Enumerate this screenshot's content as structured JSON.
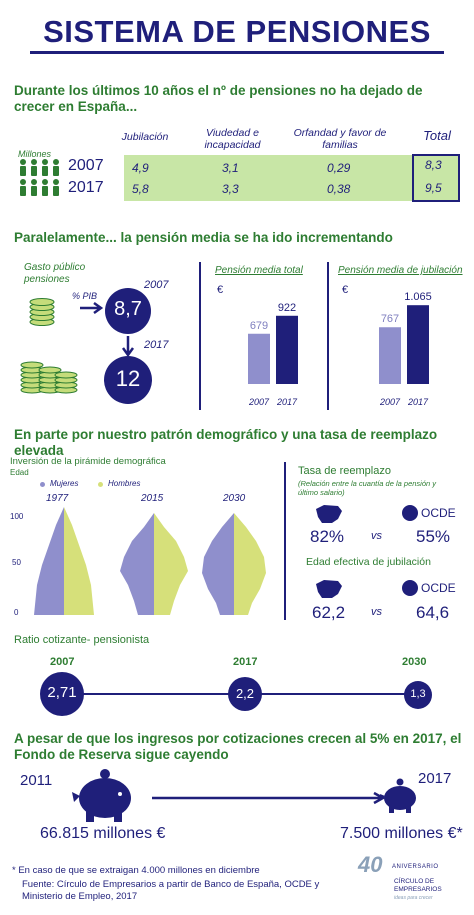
{
  "title": "SISTEMA DE PENSIONES",
  "section1": {
    "heading": "Durante los últimos 10 años el nº de pensiones no ha dejado de crecer en España...",
    "unit_label": "Millones",
    "columns": [
      "Jubilación",
      "Viudedad e incapacidad",
      "Orfandad y favor de familias",
      "Total"
    ],
    "rows": [
      {
        "year": "2007",
        "values": [
          "4,9",
          "3,1",
          "0,29",
          "8,3"
        ]
      },
      {
        "year": "2017",
        "values": [
          "5,8",
          "3,3",
          "0,38",
          "9,5"
        ]
      }
    ]
  },
  "section2": {
    "heading": "Paralelamente... la pensión media se ha ido incrementando",
    "gasto_label": "Gasto público pensiones",
    "pib_label": "% PIB",
    "year_2007": "2007",
    "year_2017": "2017",
    "gasto_2007": "8,7",
    "gasto_2017": "12",
    "currency": "€",
    "chart_data": [
      {
        "type": "bar",
        "title": "Pensión media total",
        "categories": [
          "2007",
          "2017"
        ],
        "values": [
          679,
          922
        ],
        "value_labels": [
          "679",
          "922"
        ],
        "ylim": [
          0,
          1100
        ]
      },
      {
        "type": "bar",
        "title": "Pensión media de jubilación",
        "categories": [
          "2007",
          "2017"
        ],
        "values": [
          767,
          1065
        ],
        "value_labels": [
          "767",
          "1.065"
        ],
        "ylim": [
          0,
          1100
        ]
      }
    ]
  },
  "section3": {
    "heading": "En parte por nuestro patrón demográfico y una tasa de reemplazo elevada",
    "pyramid_title": "Inversión de la pirámide demográfica",
    "edad_label": "Edad",
    "legend_mujeres": "Mujeres",
    "legend_hombres": "Hombres",
    "pyramid_years": [
      "1977",
      "2015",
      "2030"
    ],
    "age_ticks": [
      "100",
      "50",
      "0"
    ],
    "tasa_title": "Tasa de reemplazo",
    "tasa_subtitle": "(Relación entre la cuantía de la pensión y último salario)",
    "tasa_es": "82%",
    "tasa_ocde": "55%",
    "vs": "vs",
    "ocde_label": "OCDE",
    "edad_title": "Edad efectiva de jubilación",
    "edad_es": "62,2",
    "edad_ocde": "64,6"
  },
  "ratio": {
    "heading": "Ratio cotizante- pensionista",
    "points": [
      {
        "year": "2007",
        "value": "2,71"
      },
      {
        "year": "2017",
        "value": "2,2"
      },
      {
        "year": "2030",
        "value": "1,3"
      }
    ]
  },
  "section4": {
    "heading": "A pesar de que los ingresos por cotizaciones crecen al 5% en 2017, el Fondo de Reserva sigue cayendo",
    "year_start": "2011",
    "year_end": "2017",
    "value_start": "66.815 millones €",
    "value_end": "7.500 millones €*"
  },
  "footer": {
    "note": "* En caso de que se extraigan 4.000 millones en diciembre",
    "source": "Fuente: Círculo de Empresarios a partir de Banco de España, OCDE y Ministerio de Empleo, 2017",
    "logo_number": "40",
    "logo_aniversario": "ANIVERSARIO",
    "logo_name": "CÍRCULO DE EMPRESARIOS",
    "logo_tagline": "ideas para crecer"
  },
  "colors": {
    "navy": "#1f1f7a",
    "green": "#2e7d32",
    "light_green": "#c8e6a6",
    "lavender": "#8f8fcc",
    "yellow_green": "#d6e07a"
  }
}
